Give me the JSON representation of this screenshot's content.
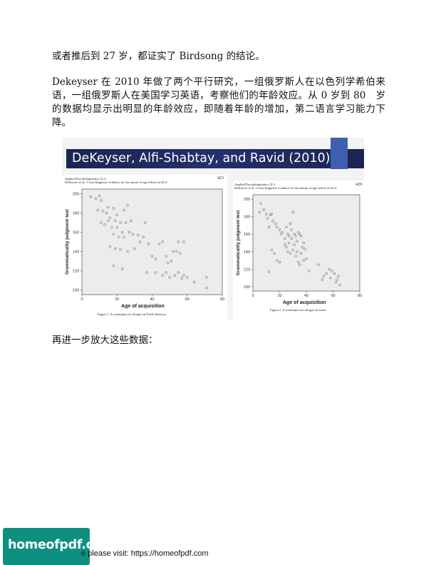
{
  "paragraphs": {
    "p1": "或者推后到 27 岁，都证实了 Birdsong 的结论。",
    "p2": "Dekeyser 在 2010 年做了两个平行研究，一组俄罗斯人在以色列学希伯来语，一组俄罗斯人在美国学习英语，考察他们的年龄效应。从 0 岁到 80　岁的数据均显示出明显的年龄效应，即随着年龄的增加，第二语言学习能力下降。",
    "p3": "再进一步放大这些数据："
  },
  "slide": {
    "title": "DeKeyser, Alfi-Shabtay, and Ravid (2010)",
    "colors": {
      "header_bg": "#1a2552",
      "accent": "#3f5fb0"
    }
  },
  "panels": {
    "left": {
      "header_line1": "Applied Psycholinguistics 31:3",
      "header_line2": "DeKeyser et al.: Cross-linguistic evidence for the nature of age effects in SLA",
      "page": "423",
      "ylabel": "Grammaticality judgment test",
      "xlabel": "Age of acquisition",
      "caption": "Figure 1.   A scatterplot for all ages in North America."
    },
    "right": {
      "header_line1": "Applied Psycholinguistics 31:3",
      "header_line2": "DeKeyser et al.: Cross-linguistic evidence for the nature of age effects in SLA",
      "page": "429",
      "ylabel": "Grammaticality judgment test",
      "xlabel": "Age of acquisition",
      "caption": "Figure 5.   A scatterplot for all ages in Israel."
    }
  },
  "chart_data": [
    {
      "type": "scatter",
      "xlabel": "Age of acquisition",
      "ylabel": "Grammaticality judgment test",
      "xlim": [
        0,
        80
      ],
      "ylim": [
        95,
        205
      ],
      "xticks": [
        0,
        20,
        40,
        60,
        80
      ],
      "yticks": [
        100,
        120,
        140,
        160,
        180,
        200
      ],
      "points": [
        [
          5,
          197
        ],
        [
          8,
          195
        ],
        [
          10,
          198
        ],
        [
          11,
          193
        ],
        [
          9,
          183
        ],
        [
          12,
          182
        ],
        [
          14,
          180
        ],
        [
          15,
          186
        ],
        [
          18,
          185
        ],
        [
          20,
          178
        ],
        [
          16,
          175
        ],
        [
          19,
          172
        ],
        [
          22,
          170
        ],
        [
          24,
          183
        ],
        [
          26,
          188
        ],
        [
          11,
          170
        ],
        [
          13,
          168
        ],
        [
          15,
          172
        ],
        [
          17,
          165
        ],
        [
          20,
          165
        ],
        [
          23,
          160
        ],
        [
          25,
          170
        ],
        [
          28,
          172
        ],
        [
          29,
          158
        ],
        [
          32,
          157
        ],
        [
          35,
          155
        ],
        [
          18,
          158
        ],
        [
          21,
          155
        ],
        [
          24,
          155
        ],
        [
          27,
          160
        ],
        [
          16,
          145
        ],
        [
          19,
          143
        ],
        [
          22,
          142
        ],
        [
          26,
          140
        ],
        [
          30,
          143
        ],
        [
          33,
          150
        ],
        [
          36,
          170
        ],
        [
          38,
          148
        ],
        [
          40,
          135
        ],
        [
          42,
          132
        ],
        [
          44,
          148
        ],
        [
          46,
          150
        ],
        [
          48,
          135
        ],
        [
          49,
          128
        ],
        [
          51,
          130
        ],
        [
          52,
          140
        ],
        [
          54,
          140
        ],
        [
          55,
          150
        ],
        [
          56,
          138
        ],
        [
          58,
          150
        ],
        [
          18,
          125
        ],
        [
          23,
          122
        ],
        [
          37,
          118
        ],
        [
          42,
          118
        ],
        [
          46,
          115
        ],
        [
          48,
          118
        ],
        [
          50,
          113
        ],
        [
          53,
          115
        ],
        [
          55,
          118
        ],
        [
          57,
          112
        ],
        [
          58,
          115
        ],
        [
          60,
          113
        ],
        [
          64,
          108
        ],
        [
          71,
          113
        ],
        [
          71,
          102
        ]
      ]
    },
    {
      "type": "scatter",
      "xlabel": "Age of acquisition",
      "ylabel": "Grammaticality judgment test",
      "xlim": [
        0,
        80
      ],
      "ylim": [
        95,
        205
      ],
      "xticks": [
        0,
        20,
        40,
        60,
        80
      ],
      "yticks": [
        100,
        120,
        140,
        160,
        180,
        200
      ],
      "points": [
        [
          5,
          185
        ],
        [
          6,
          195
        ],
        [
          8,
          188
        ],
        [
          10,
          183
        ],
        [
          11,
          178
        ],
        [
          12,
          168
        ],
        [
          13,
          182
        ],
        [
          15,
          175
        ],
        [
          14,
          183
        ],
        [
          17,
          172
        ],
        [
          18,
          168
        ],
        [
          20,
          165
        ],
        [
          21,
          160
        ],
        [
          22,
          162
        ],
        [
          24,
          155
        ],
        [
          25,
          168
        ],
        [
          26,
          160
        ],
        [
          27,
          158
        ],
        [
          28,
          172
        ],
        [
          29,
          165
        ],
        [
          30,
          185
        ],
        [
          31,
          160
        ],
        [
          32,
          158
        ],
        [
          33,
          152
        ],
        [
          34,
          162
        ],
        [
          35,
          160
        ],
        [
          36,
          158
        ],
        [
          37,
          145
        ],
        [
          38,
          150
        ],
        [
          39,
          143
        ],
        [
          40,
          132
        ],
        [
          24,
          148
        ],
        [
          25,
          145
        ],
        [
          26,
          140
        ],
        [
          27,
          150
        ],
        [
          28,
          138
        ],
        [
          29,
          155
        ],
        [
          30,
          142
        ],
        [
          31,
          148
        ],
        [
          32,
          135
        ],
        [
          33,
          140
        ],
        [
          34,
          128
        ],
        [
          35,
          125
        ],
        [
          36,
          138
        ],
        [
          14,
          142
        ],
        [
          16,
          138
        ],
        [
          18,
          130
        ],
        [
          20,
          128
        ],
        [
          12,
          117
        ],
        [
          38,
          130
        ],
        [
          42,
          118
        ],
        [
          49,
          125
        ],
        [
          52,
          108
        ],
        [
          53,
          112
        ],
        [
          55,
          115
        ],
        [
          57,
          120
        ],
        [
          58,
          110
        ],
        [
          59,
          118
        ],
        [
          61,
          115
        ],
        [
          62,
          105
        ],
        [
          63,
          108
        ],
        [
          64,
          112
        ],
        [
          65,
          102
        ]
      ]
    }
  ],
  "footer": {
    "watermark": "homeofpdf.com",
    "visit_text": "e please visit: https://homeofpdf.com"
  }
}
